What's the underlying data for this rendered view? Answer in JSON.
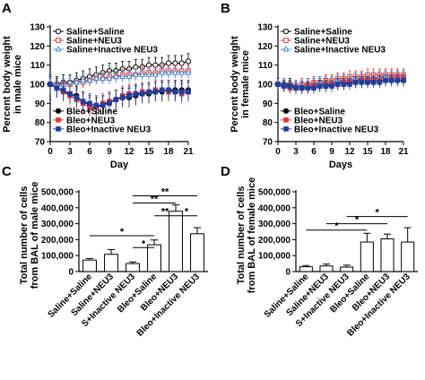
{
  "panels": [
    "A",
    "B",
    "C",
    "D"
  ],
  "chart_data": [
    {
      "id": "A",
      "type": "line",
      "xlabel": "Day",
      "ylabel": [
        "Percent body weight",
        "in male mice"
      ],
      "xlim": [
        0,
        21
      ],
      "ylim": [
        70,
        130
      ],
      "xticks": [
        0,
        3,
        6,
        9,
        12,
        15,
        18,
        21
      ],
      "yticks": [
        70,
        80,
        90,
        100,
        110,
        120,
        130
      ],
      "x": [
        0,
        1,
        2,
        3,
        4,
        5,
        6,
        7,
        8,
        9,
        10,
        11,
        12,
        13,
        14,
        15,
        16,
        17,
        18,
        19,
        20,
        21
      ],
      "legend_top": [
        "Saline+Saline",
        "Saline+NEU3",
        "Saline+Inactive NEU3"
      ],
      "legend_bottom": [
        "Bleo+Saline",
        "Bleo+NEU3",
        "Bleo+Inactive NEU3"
      ],
      "series": [
        {
          "name": "Saline+Saline",
          "color": "#000000",
          "marker": "circle-open",
          "values": [
            100,
            100,
            101,
            101,
            102,
            103,
            104,
            105,
            106,
            107,
            107,
            108,
            108,
            109,
            109,
            110,
            110,
            110,
            111,
            111,
            111,
            112
          ],
          "err": 4
        },
        {
          "name": "Saline+NEU3",
          "color": "#e03a3a",
          "marker": "square-open",
          "values": [
            100,
            99,
            100,
            100,
            101,
            101,
            102,
            103,
            103,
            104,
            104,
            105,
            105,
            105,
            106,
            106,
            106,
            107,
            107,
            107,
            107,
            107
          ],
          "err": 3
        },
        {
          "name": "Saline+Inactive NEU3",
          "color": "#4a90d9",
          "marker": "triangle-open",
          "values": [
            100,
            100,
            100,
            101,
            101,
            102,
            102,
            103,
            103,
            103,
            104,
            104,
            104,
            105,
            105,
            105,
            105,
            106,
            106,
            106,
            106,
            106
          ],
          "err": 3
        },
        {
          "name": "Bleo+Saline",
          "color": "#000000",
          "marker": "circle",
          "values": [
            100,
            98,
            96,
            95,
            94,
            91,
            89,
            88,
            89,
            91,
            92,
            93,
            93,
            94,
            95,
            95,
            96,
            96,
            97,
            97,
            97,
            97
          ],
          "err": 5
        },
        {
          "name": "Bleo+NEU3",
          "color": "#e03a3a",
          "marker": "square",
          "values": [
            100,
            98,
            96,
            94,
            92,
            90,
            88,
            88,
            90,
            91,
            92,
            94,
            95,
            95,
            96,
            96,
            97,
            97,
            96,
            96,
            95,
            96
          ],
          "err": 5
        },
        {
          "name": "Bleo+Inactive NEU3",
          "color": "#1f3fa0",
          "marker": "square",
          "values": [
            100,
            98,
            97,
            95,
            93,
            91,
            90,
            89,
            89,
            90,
            92,
            93,
            94,
            95,
            95,
            96,
            96,
            97,
            97,
            96,
            96,
            96
          ],
          "err": 5
        }
      ]
    },
    {
      "id": "B",
      "type": "line",
      "xlabel": "Days",
      "ylabel": [
        "Percent body weight",
        "in female mice"
      ],
      "xlim": [
        0,
        21
      ],
      "ylim": [
        70,
        130
      ],
      "xticks": [
        0,
        3,
        6,
        9,
        12,
        15,
        18,
        21
      ],
      "yticks": [
        70,
        80,
        90,
        100,
        110,
        120,
        130
      ],
      "x": [
        0,
        1,
        2,
        3,
        4,
        5,
        6,
        7,
        8,
        9,
        10,
        11,
        12,
        13,
        14,
        15,
        16,
        17,
        18,
        19,
        20,
        21
      ],
      "legend_top": [
        "Saline+Saline",
        "Saline+NEU3",
        "Saline+Inactive NEU3"
      ],
      "legend_bottom": [
        "Bleo+Saline",
        "Bleo+NEU3",
        "Bleo+Inactive NEU3"
      ],
      "series": [
        {
          "name": "Saline+Saline",
          "color": "#000000",
          "marker": "circle-open",
          "values": [
            100,
            100,
            100,
            99,
            99,
            100,
            100,
            100,
            101,
            101,
            101,
            102,
            102,
            102,
            103,
            103,
            103,
            103,
            104,
            104,
            104,
            104
          ],
          "err": 3
        },
        {
          "name": "Saline+NEU3",
          "color": "#e03a3a",
          "marker": "square-open",
          "values": [
            100,
            99,
            99,
            99,
            100,
            100,
            101,
            101,
            102,
            102,
            103,
            103,
            104,
            104,
            104,
            105,
            105,
            105,
            105,
            105,
            105,
            105
          ],
          "err": 3
        },
        {
          "name": "Saline+Inactive NEU3",
          "color": "#4a90d9",
          "marker": "triangle-open",
          "values": [
            100,
            100,
            99,
            99,
            99,
            100,
            100,
            101,
            101,
            101,
            102,
            102,
            102,
            103,
            103,
            103,
            103,
            104,
            104,
            104,
            104,
            104
          ],
          "err": 3
        },
        {
          "name": "Bleo+Saline",
          "color": "#000000",
          "marker": "circle",
          "values": [
            100,
            99,
            99,
            98,
            98,
            98,
            99,
            99,
            99,
            100,
            100,
            100,
            101,
            101,
            101,
            101,
            102,
            102,
            102,
            102,
            102,
            102
          ],
          "err": 3
        },
        {
          "name": "Bleo+NEU3",
          "color": "#e03a3a",
          "marker": "square",
          "values": [
            100,
            99,
            98,
            98,
            98,
            99,
            99,
            99,
            100,
            100,
            100,
            101,
            101,
            101,
            102,
            102,
            102,
            102,
            102,
            103,
            103,
            103
          ],
          "err": 3
        },
        {
          "name": "Bleo+Inactive NEU3",
          "color": "#1f3fa0",
          "marker": "square",
          "values": [
            100,
            99,
            99,
            98,
            98,
            98,
            98,
            99,
            99,
            99,
            100,
            100,
            100,
            101,
            101,
            101,
            101,
            101,
            102,
            102,
            102,
            102
          ],
          "err": 3
        }
      ]
    },
    {
      "id": "C",
      "type": "bar",
      "ylabel": [
        "Total number of cells",
        "from BAL of male mice"
      ],
      "ylim": [
        0,
        500000
      ],
      "yticks": [
        0,
        100000,
        200000,
        300000,
        400000,
        500000
      ],
      "ytick_labels": [
        "0",
        "100,000",
        "200,000",
        "300,000",
        "400,000",
        "500,000"
      ],
      "categories": [
        "Saline+Saline",
        "Saline+NEU3",
        "S+Inactive NEU3",
        "Bleo+Saline",
        "Bleo+NEU3",
        "Bleo+Inactive NEU3"
      ],
      "values": [
        72000,
        108000,
        50000,
        168000,
        378000,
        237000
      ],
      "errors": [
        10000,
        30000,
        10000,
        30000,
        40000,
        38000
      ],
      "significance": [
        {
          "from": 0,
          "to": 3,
          "y": 225000,
          "label": "*"
        },
        {
          "from": 2,
          "to": 3,
          "y": 150000,
          "label": "*"
        },
        {
          "from": 2,
          "to": 4,
          "y": 430000,
          "label": "**"
        },
        {
          "from": 2,
          "to": 5,
          "y": 475000,
          "label": "**"
        },
        {
          "from": 3,
          "to": 4,
          "y": 350000,
          "label": "**"
        },
        {
          "from": 4,
          "to": 5,
          "y": 350000,
          "label": "*"
        }
      ]
    },
    {
      "id": "D",
      "type": "bar",
      "ylabel": [
        "Total number of cells",
        "from BAL of female mice"
      ],
      "ylim": [
        0,
        500000
      ],
      "yticks": [
        0,
        100000,
        200000,
        300000,
        400000,
        500000
      ],
      "ytick_labels": [
        "0",
        "100,000",
        "200,000",
        "300,000",
        "400,000",
        "500,000"
      ],
      "categories": [
        "Saline+Saline",
        "Saline+NEU3",
        "S+Inactive NEU3",
        "Bleo+Saline",
        "Bleo+NEU3",
        "Bleo+Inactive NEU3"
      ],
      "values": [
        30000,
        35000,
        28000,
        185000,
        205000,
        185000
      ],
      "errors": [
        8000,
        12000,
        12000,
        55000,
        30000,
        90000
      ],
      "significance": [
        {
          "from": 0,
          "to": 3,
          "y": 260000,
          "label": "*"
        },
        {
          "from": 1,
          "to": 4,
          "y": 300000,
          "label": "*"
        },
        {
          "from": 2,
          "to": 5,
          "y": 345000,
          "label": "*"
        }
      ]
    }
  ]
}
